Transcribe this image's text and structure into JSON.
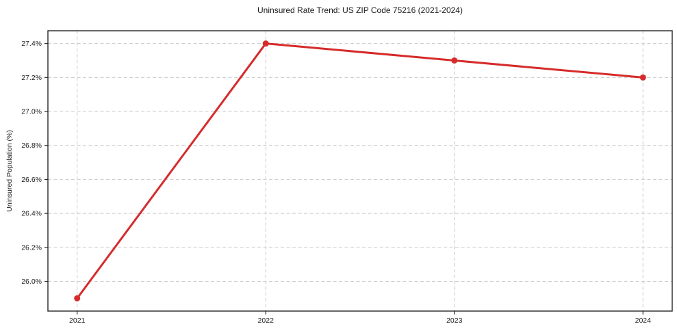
{
  "chart_data": {
    "type": "line",
    "title": "Uninsured Rate Trend: US ZIP Code 75216 (2021-2024)",
    "xlabel": "",
    "ylabel": "Uninsured Population (%)",
    "x": [
      2021,
      2022,
      2023,
      2024
    ],
    "categories": [
      "2021",
      "2022",
      "2023",
      "2024"
    ],
    "series": [
      {
        "name": "Uninsured Population (%)",
        "values": [
          25.9,
          27.4,
          27.3,
          27.2
        ]
      }
    ],
    "y_ticks": [
      26.0,
      26.2,
      26.4,
      26.6,
      26.8,
      27.0,
      27.2,
      27.4
    ],
    "y_tick_labels": [
      "26.0%",
      "26.2%",
      "26.4%",
      "26.6%",
      "26.8%",
      "27.0%",
      "27.2%",
      "27.4%"
    ],
    "x_tick_labels": [
      "2021",
      "2022",
      "2023",
      "2024"
    ],
    "xlim": [
      2020.845,
      2024.155
    ],
    "ylim": [
      25.825,
      27.475
    ],
    "grid": true,
    "grid_style": "dashed",
    "legend_position": "none",
    "colors": {
      "line": "#d62b2b",
      "marker": "#d62b2b",
      "grid": "#c9c9c9",
      "axis": "#262626",
      "text": "#1a1a1a",
      "background": "#ffffff"
    }
  }
}
